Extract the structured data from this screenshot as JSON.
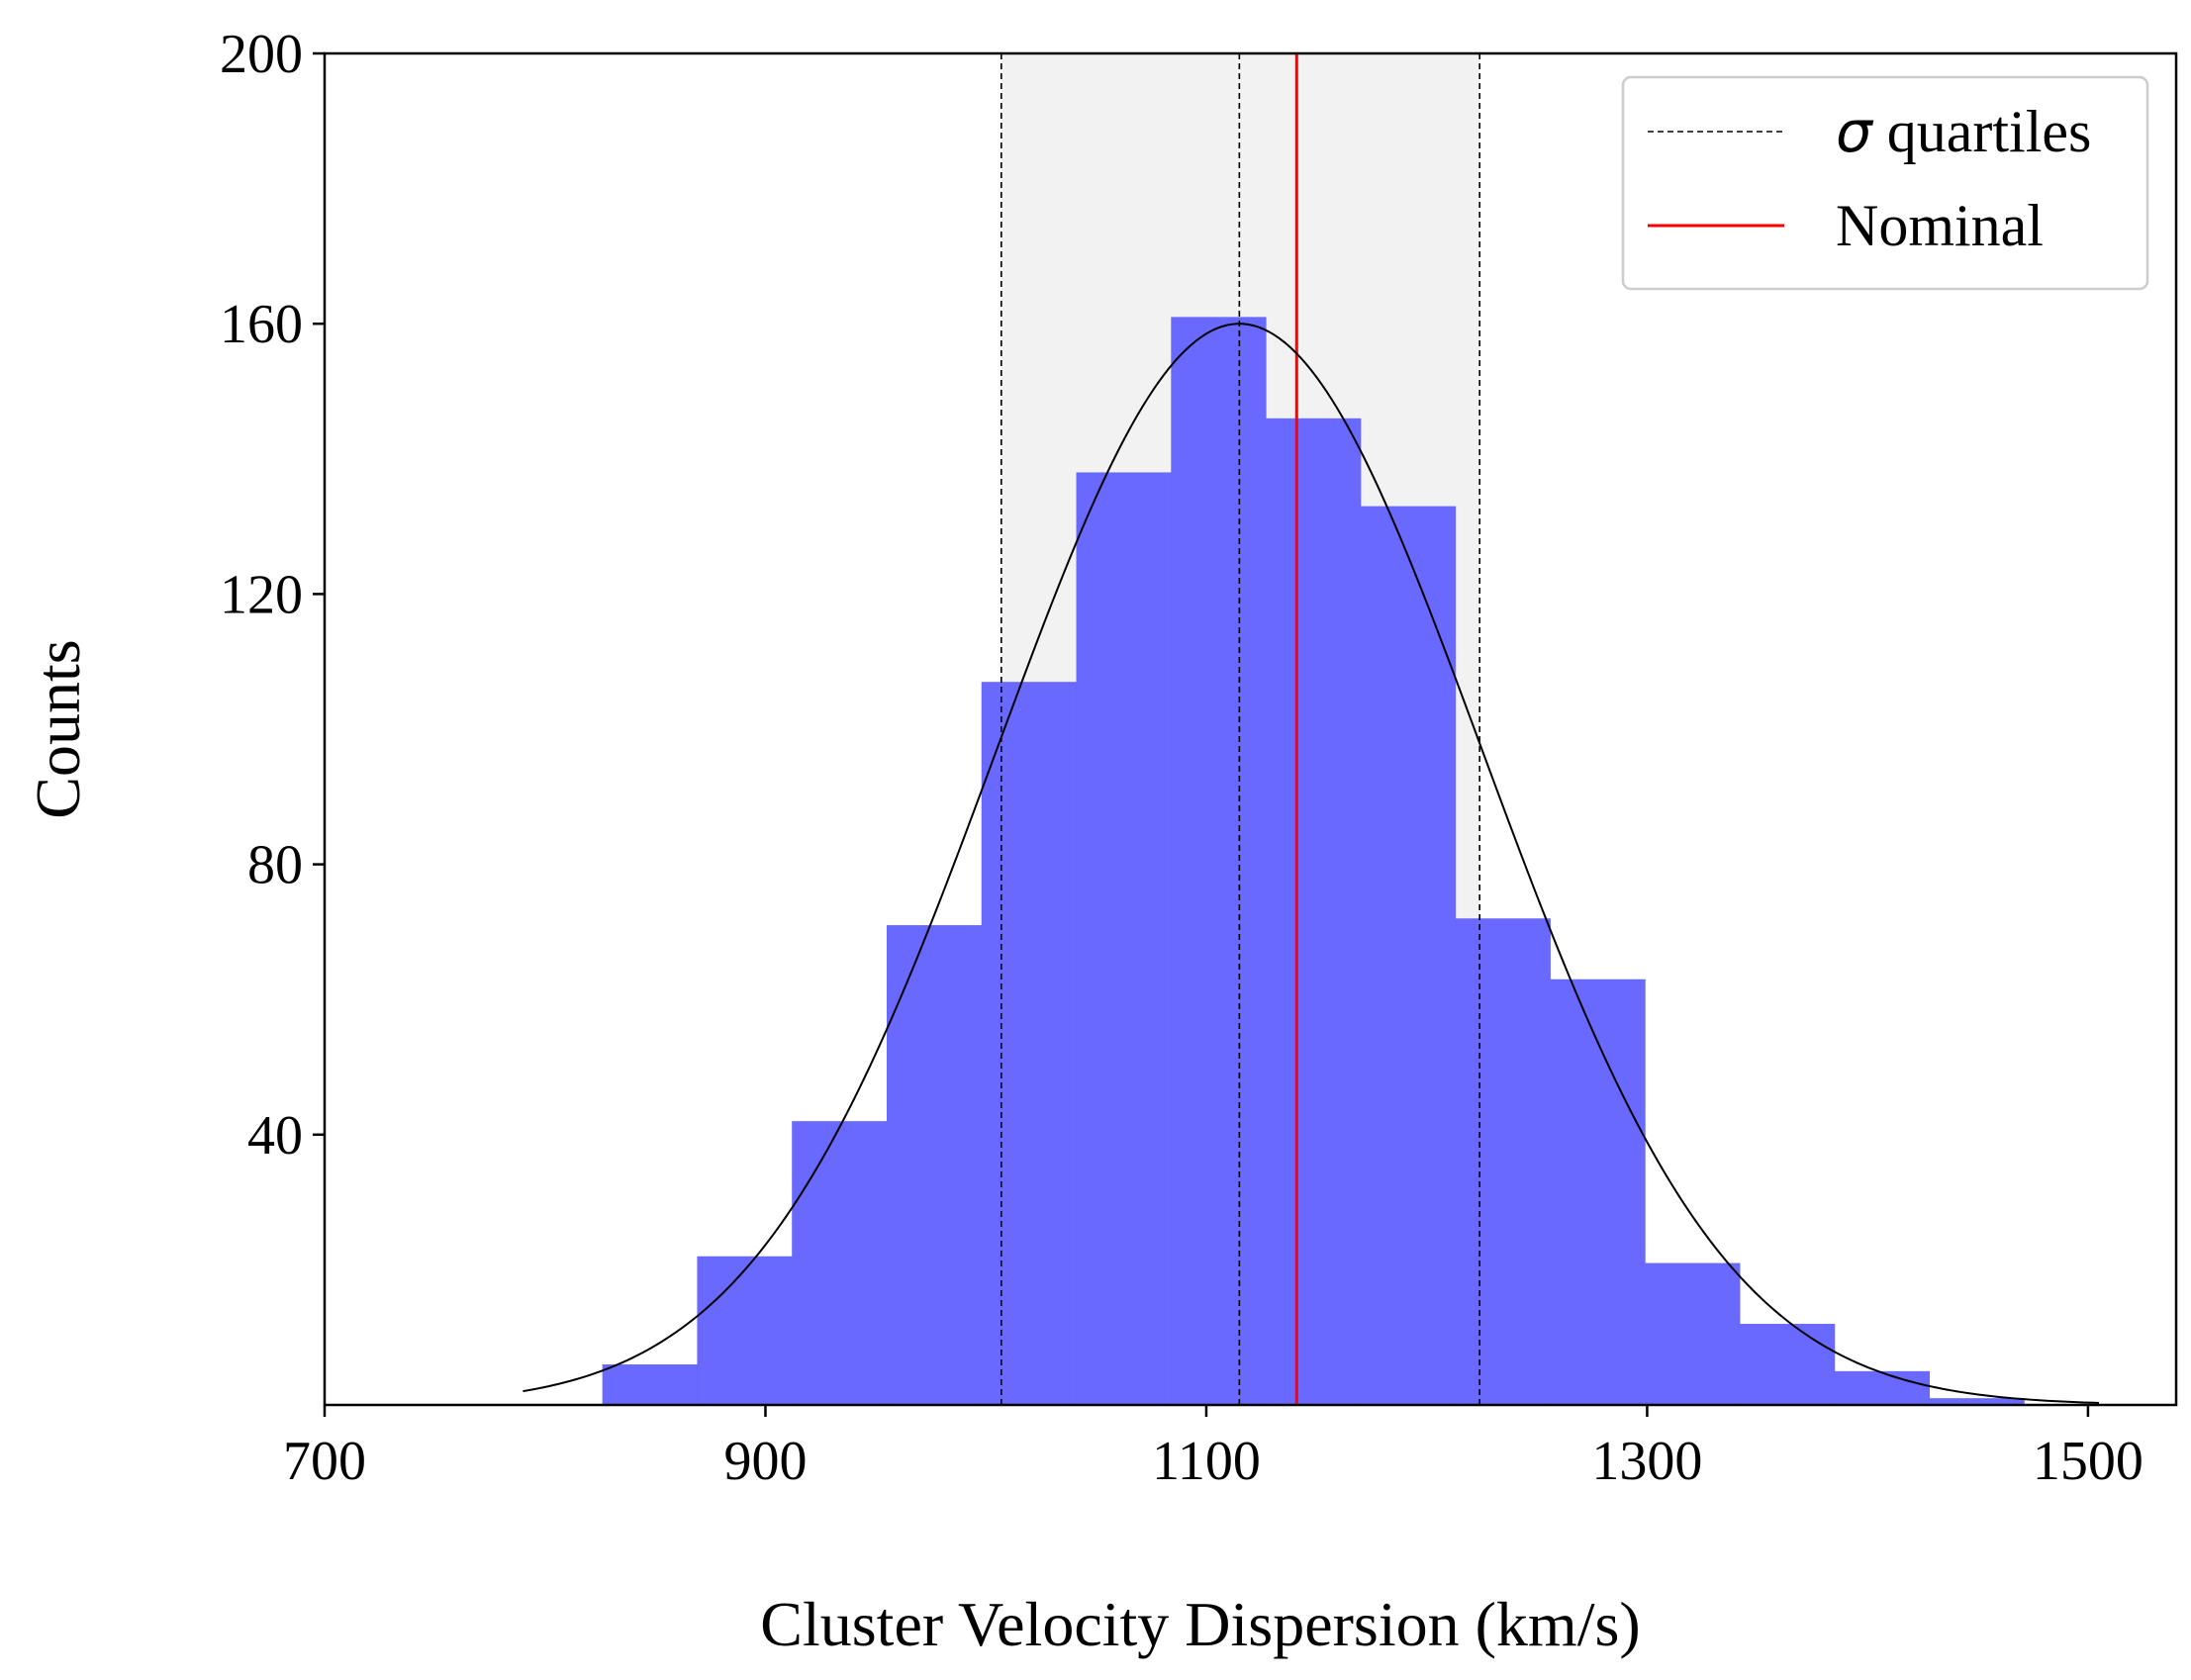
{
  "chart_data": {
    "type": "bar",
    "xlabel": "Cluster Velocity Dispersion (km/s)",
    "ylabel": "Counts",
    "xlim": [
      700,
      1540
    ],
    "ylim": [
      0,
      200
    ],
    "xticks": [
      700,
      900,
      1100,
      1300,
      1500
    ],
    "yticks": [
      40,
      80,
      120,
      160,
      200
    ],
    "histogram": {
      "color": "#6666ff",
      "bins": [
        {
          "x0": 826,
          "x1": 869,
          "count": 6
        },
        {
          "x0": 869,
          "x1": 912,
          "count": 22
        },
        {
          "x0": 912,
          "x1": 955,
          "count": 42
        },
        {
          "x0": 955,
          "x1": 998,
          "count": 71
        },
        {
          "x0": 998,
          "x1": 1041,
          "count": 107
        },
        {
          "x0": 1041,
          "x1": 1084,
          "count": 138
        },
        {
          "x0": 1084,
          "x1": 1127,
          "count": 161
        },
        {
          "x0": 1127,
          "x1": 1170,
          "count": 146
        },
        {
          "x0": 1170,
          "x1": 1213,
          "count": 133
        },
        {
          "x0": 1213,
          "x1": 1256,
          "count": 72
        },
        {
          "x0": 1256,
          "x1": 1299,
          "count": 63
        },
        {
          "x0": 1299,
          "x1": 1342,
          "count": 21
        },
        {
          "x0": 1342,
          "x1": 1385,
          "count": 12
        },
        {
          "x0": 1385,
          "x1": 1428,
          "count": 5
        },
        {
          "x0": 1428,
          "x1": 1471,
          "count": 1
        }
      ]
    },
    "gaussian_fit": {
      "mean": 1115,
      "sigma": 110,
      "peak": 160,
      "x_range": [
        790,
        1505
      ],
      "color": "#000000"
    },
    "quartiles": {
      "values": [
        1007,
        1115,
        1224
      ],
      "color": "#000000",
      "style": "dashed",
      "shaded_band": [
        1007,
        1224
      ],
      "band_color": "#f2f2f2"
    },
    "nominal": {
      "value": 1141,
      "color": "#ff0000"
    },
    "legend": {
      "position": "top-right",
      "entries": [
        {
          "symbol": "σ",
          "label": " quartiles",
          "style": "dashed",
          "color": "#000000"
        },
        {
          "label": "Nominal",
          "style": "solid",
          "color": "#ff0000"
        }
      ]
    }
  }
}
